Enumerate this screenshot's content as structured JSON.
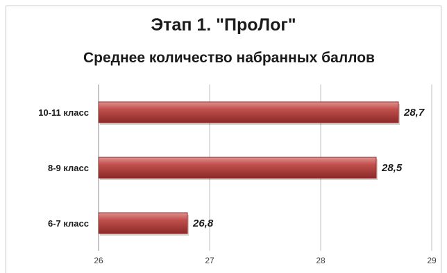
{
  "chart_data": {
    "type": "bar",
    "orientation": "horizontal",
    "title": "Этап 1. \"ПроЛог\"",
    "subtitle": "Среднее количество набранных баллов",
    "categories": [
      "10-11 класс",
      "8-9 класс",
      "6-7 класс"
    ],
    "values": [
      28.7,
      28.5,
      26.8
    ],
    "data_labels": [
      "28,7",
      "28,5",
      "26,8"
    ],
    "xlim": [
      26,
      29
    ],
    "x_ticks": [
      "26",
      "27",
      "28",
      "29"
    ],
    "grid": true,
    "legend": "none",
    "bar_color": "#c0504d",
    "bar_color_dark": "#8c2a27",
    "bar_color_light": "#e6908d"
  }
}
